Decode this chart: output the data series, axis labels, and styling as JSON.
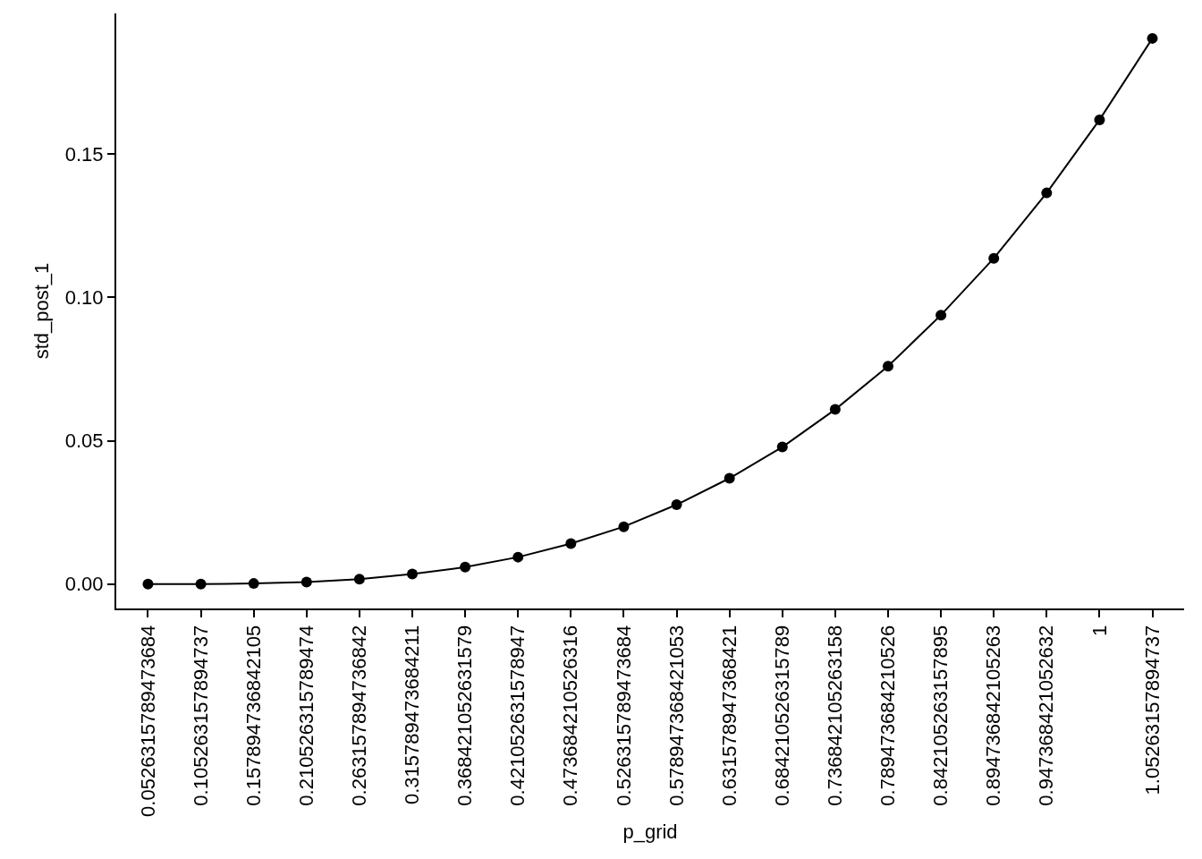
{
  "chart_data": {
    "type": "line",
    "xlabel": "p_grid",
    "ylabel": "std_post_1",
    "categories": [
      "0.0526315789473684",
      "0.105263157894737",
      "0.157894736842105",
      "0.210526315789474",
      "0.263157894736842",
      "0.315789473684211",
      "0.368421052631579",
      "0.421052631578947",
      "0.473684210526316",
      "0.526315789473684",
      "0.578947368421053",
      "0.631578947368421",
      "0.684210526315789",
      "0.736842105263158",
      "0.789473684210526",
      "0.842105263157895",
      "0.894736842105263",
      "0.947368421052632",
      "1",
      "1.05263157894737"
    ],
    "series": [
      {
        "color": "#000000",
        "values": [
          0,
          0,
          0.0002,
          0.0007,
          0.0017,
          0.0035,
          0.0059,
          0.0094,
          0.0141,
          0.02,
          0.0277,
          0.0369,
          0.0478,
          0.0609,
          0.076,
          0.0938,
          0.1136,
          0.1364,
          0.1619,
          0.1903
        ]
      }
    ],
    "ylim": [
      -0.0085,
      0.199
    ],
    "yticks": [
      {
        "value": 0,
        "label": "0.00"
      },
      {
        "value": 0.05,
        "label": "0.05"
      },
      {
        "value": 0.1,
        "label": "0.10"
      },
      {
        "value": 0.15,
        "label": "0.15"
      }
    ],
    "grid": false,
    "marker": "circle",
    "line_style": "solid"
  }
}
